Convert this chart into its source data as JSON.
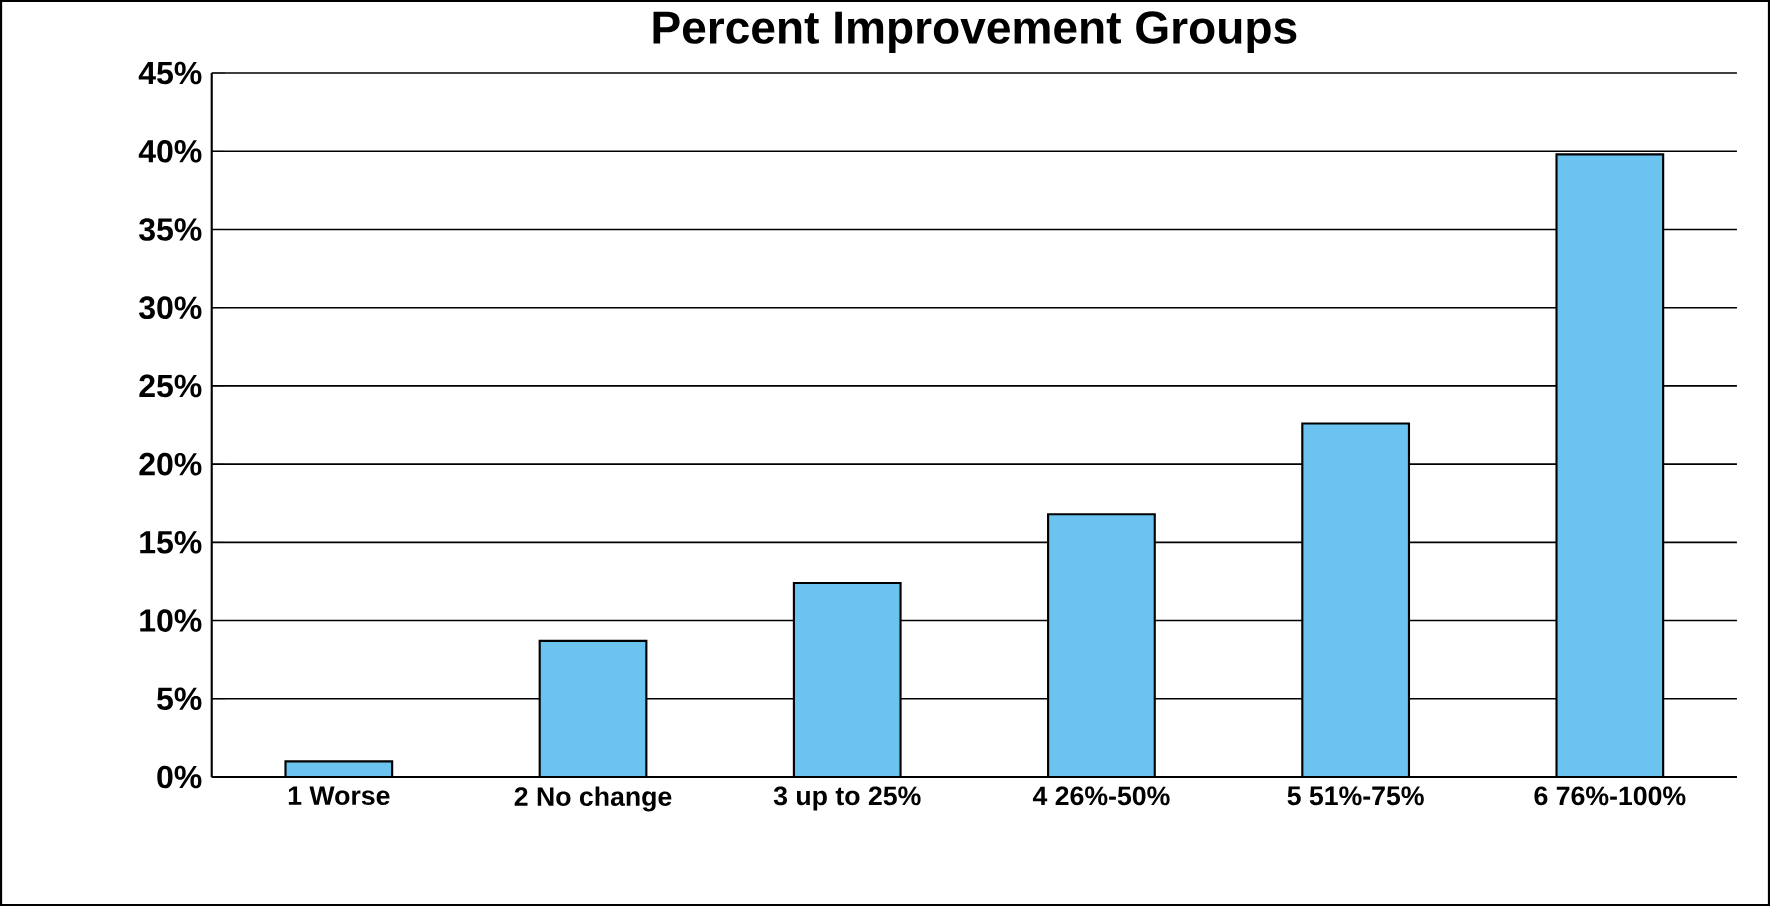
{
  "chart_data": {
    "type": "bar",
    "title": "Percent Improvement Groups",
    "categories": [
      "1 Worse",
      "2 No change",
      "3 up to 25%",
      "4 26%-50%",
      "5 51%-75%",
      "6 76%-100%"
    ],
    "values": [
      1.0,
      8.7,
      12.4,
      16.8,
      22.6,
      39.8
    ],
    "color": "#6ac4ef",
    "ylim": [
      0,
      45
    ],
    "yticks": [
      {
        "value": 0,
        "label": "0%"
      },
      {
        "value": 5,
        "label": "5%"
      },
      {
        "value": 10,
        "label": "10%"
      },
      {
        "value": 15,
        "label": "15%"
      },
      {
        "value": 20,
        "label": "20%"
      },
      {
        "value": 25,
        "label": "25%"
      },
      {
        "value": 30,
        "label": "30%"
      },
      {
        "value": 35,
        "label": "35%"
      },
      {
        "value": 40,
        "label": "40%"
      },
      {
        "value": 45,
        "label": "45%"
      }
    ],
    "grid": "y"
  }
}
